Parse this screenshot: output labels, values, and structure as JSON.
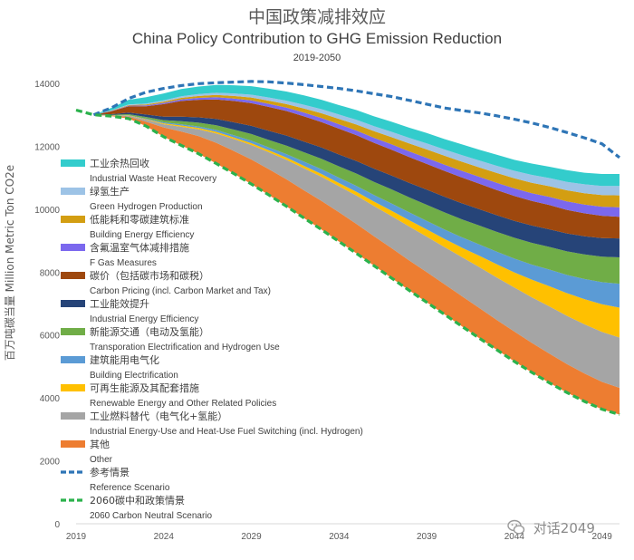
{
  "chart_data": {
    "type": "area",
    "title_cn": "中国政策减排效应",
    "title": "China Policy Contribution to GHG Emission Reduction",
    "subtitle": "2019-2050",
    "ylabel_cn": "百万吨碳当量",
    "ylabel": "Million Metric Ton CO2e",
    "xlabel": "",
    "ylim": [
      0,
      14000
    ],
    "yticks": [
      0,
      2000,
      4000,
      6000,
      8000,
      10000,
      12000,
      14000
    ],
    "ytick_labels": [
      "0",
      "2000",
      "4000",
      "6000",
      "8000",
      "10000",
      "12000",
      "14000"
    ],
    "xlim": [
      2019,
      2050
    ],
    "xticks": [
      2019,
      2024,
      2029,
      2034,
      2039,
      2044,
      2049
    ],
    "xtick_labels": [
      "2019",
      "2024",
      "2029",
      "2034",
      "2039",
      "2044",
      "2049"
    ],
    "x": [
      2020,
      2021,
      2022,
      2023,
      2024,
      2025,
      2026,
      2027,
      2028,
      2029,
      2030,
      2031,
      2032,
      2033,
      2034,
      2035,
      2036,
      2037,
      2038,
      2039,
      2040,
      2041,
      2042,
      2043,
      2044,
      2045,
      2046,
      2047,
      2048,
      2049,
      2050
    ],
    "carbon_neutral": [
      13000,
      12960,
      12880,
      12640,
      12300,
      12030,
      11760,
      11450,
      11130,
      10800,
      10450,
      10090,
      9720,
      9350,
      8970,
      8590,
      8200,
      7810,
      7420,
      7040,
      6660,
      6280,
      5900,
      5530,
      5160,
      4810,
      4480,
      4170,
      3890,
      3640,
      3470
    ],
    "reference": [
      13000,
      13220,
      13520,
      13720,
      13840,
      13930,
      13990,
      14020,
      14040,
      14060,
      14050,
      14010,
      13960,
      13900,
      13840,
      13760,
      13670,
      13580,
      13460,
      13340,
      13220,
      13140,
      13060,
      12970,
      12860,
      12740,
      12600,
      12440,
      12270,
      12080,
      11640
    ],
    "series": [
      {
        "name_cn": "其他",
        "name": "Other",
        "color": "#ED7D31",
        "values": [
          0,
          20,
          60,
          140,
          300,
          440,
          560,
          660,
          720,
          780,
          820,
          860,
          880,
          910,
          930,
          940,
          940,
          950,
          950,
          960,
          960,
          960,
          960,
          950,
          950,
          940,
          930,
          910,
          890,
          870,
          850
        ]
      },
      {
        "name_cn": "工业燃料替代（电气化+氢能）",
        "name": "Industrial Energy-Use and Heat-Use Fuel Switching (incl. Hydrogen)",
        "color": "#A5A5A5",
        "values": [
          0,
          10,
          30,
          60,
          100,
          150,
          220,
          300,
          380,
          460,
          540,
          620,
          700,
          770,
          830,
          900,
          960,
          1020,
          1080,
          1130,
          1180,
          1240,
          1300,
          1350,
          1400,
          1450,
          1500,
          1530,
          1560,
          1590,
          1600
        ]
      },
      {
        "name_cn": "可再生能源及其配套措施",
        "name": "Renewable Energy and Other Related Policies",
        "color": "#FFC000",
        "values": [
          0,
          0,
          10,
          20,
          30,
          40,
          40,
          50,
          50,
          60,
          60,
          70,
          80,
          90,
          100,
          120,
          140,
          170,
          200,
          230,
          260,
          300,
          360,
          420,
          480,
          560,
          640,
          720,
          800,
          880,
          950
        ]
      },
      {
        "name_cn": "建筑能用电气化",
        "name": "Building Electrification",
        "color": "#5B9BD5",
        "values": [
          0,
          0,
          10,
          20,
          30,
          40,
          50,
          60,
          70,
          80,
          90,
          110,
          130,
          150,
          170,
          190,
          210,
          230,
          250,
          270,
          300,
          330,
          360,
          400,
          440,
          480,
          530,
          580,
          640,
          700,
          760
        ]
      },
      {
        "name_cn": "新能源交通（电动及氢能）",
        "name": "Transporation Electrification and Hydrogen Use",
        "color": "#70AD47",
        "values": [
          0,
          10,
          30,
          50,
          70,
          100,
          120,
          150,
          180,
          210,
          240,
          270,
          300,
          330,
          360,
          390,
          420,
          450,
          480,
          510,
          540,
          570,
          600,
          630,
          660,
          690,
          720,
          750,
          780,
          810,
          840
        ]
      },
      {
        "name_cn": "工业能效提升",
        "name": "Industrial Energy Efficiency",
        "color": "#264478",
        "values": [
          0,
          20,
          50,
          80,
          110,
          140,
          170,
          200,
          230,
          260,
          290,
          320,
          340,
          360,
          380,
          400,
          420,
          440,
          460,
          480,
          500,
          510,
          520,
          530,
          540,
          550,
          560,
          570,
          580,
          590,
          600
        ]
      },
      {
        "name_cn": "碳价（包括碳市场和碳税）",
        "name": "Carbon Pricing (incl. Carbon Market and Tax)",
        "color": "#9E480E",
        "values": [
          0,
          90,
          200,
          260,
          400,
          500,
          560,
          620,
          680,
          720,
          760,
          780,
          800,
          810,
          820,
          820,
          820,
          820,
          820,
          820,
          820,
          820,
          810,
          800,
          790,
          780,
          770,
          750,
          730,
          710,
          690
        ]
      },
      {
        "name_cn": "含氟温室气体减排措施",
        "name": "F Gas Measures",
        "color": "#7B68EE",
        "values": [
          0,
          10,
          20,
          30,
          40,
          50,
          60,
          70,
          80,
          90,
          100,
          110,
          120,
          130,
          140,
          150,
          160,
          170,
          180,
          190,
          200,
          210,
          220,
          230,
          240,
          250,
          260,
          270,
          280,
          290,
          300
        ]
      },
      {
        "name_cn": "低能耗和零碳建筑标准",
        "name": "Building Energy Efficiency",
        "color": "#D39E12",
        "values": [
          0,
          10,
          20,
          30,
          40,
          50,
          60,
          70,
          80,
          90,
          100,
          110,
          130,
          150,
          170,
          190,
          210,
          230,
          250,
          270,
          280,
          290,
          300,
          310,
          320,
          330,
          340,
          350,
          360,
          370,
          380
        ]
      },
      {
        "name_cn": "绿氢生产",
        "name": "Green Hydrogen Production",
        "color": "#9DC3E6",
        "values": [
          0,
          10,
          20,
          30,
          40,
          50,
          60,
          70,
          80,
          90,
          100,
          110,
          120,
          130,
          140,
          150,
          160,
          170,
          180,
          190,
          200,
          210,
          220,
          230,
          240,
          250,
          260,
          270,
          280,
          290,
          300
        ]
      },
      {
        "name_cn": "工业余热回收",
        "name": "Industrial Waste Heat Recovery",
        "color": "#33CCCC",
        "values": [
          0,
          80,
          150,
          200,
          220,
          230,
          240,
          250,
          260,
          270,
          280,
          290,
          300,
          300,
          300,
          310,
          310,
          320,
          320,
          330,
          330,
          340,
          340,
          350,
          350,
          360,
          360,
          370,
          370,
          380,
          380
        ]
      }
    ],
    "lines": [
      {
        "name_cn": "参考情景",
        "name": "Reference Scenario",
        "color": "#2E75B6",
        "style": "dashed"
      },
      {
        "name_cn": "2060碳中和政策情景",
        "name": "2060 Carbon Neutral Scenario",
        "color": "#2BB24C",
        "style": "dashed"
      }
    ],
    "legend_position": "left-inside"
  },
  "watermark": {
    "icon": "wechat-icon",
    "text": "对话2049"
  }
}
